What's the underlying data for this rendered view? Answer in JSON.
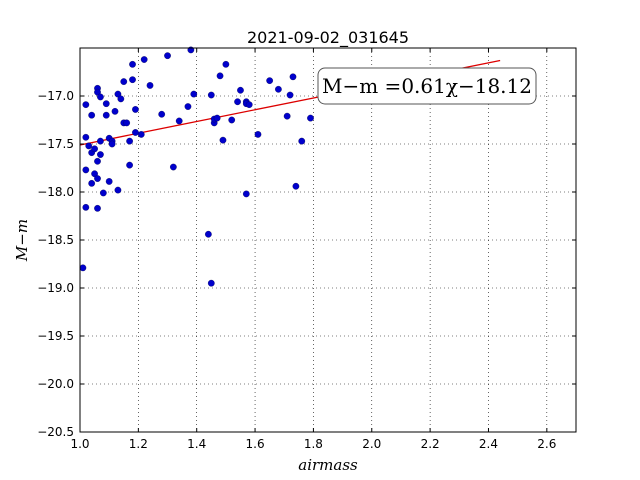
{
  "chart_data": {
    "type": "scatter",
    "title": "2021-09-02_031645",
    "xlabel": "airmass",
    "ylabel": "M−m",
    "xlim": [
      1.0,
      2.7
    ],
    "ylim": [
      -20.5,
      -16.5
    ],
    "y_inverted": true,
    "xticks": [
      "1.0",
      "1.2",
      "1.4",
      "1.6",
      "1.8",
      "2.0",
      "2.2",
      "2.4",
      "2.6"
    ],
    "yticks": [
      "−17.0",
      "−17.5",
      "−18.0",
      "−18.5",
      "−19.0",
      "−19.5",
      "−20.0",
      "−20.5"
    ],
    "grid": true,
    "annotation": "M−m =0.61χ−18.12",
    "colors": {
      "points": "#0000cc",
      "fit_line": "#dd0000"
    },
    "series": [
      {
        "kind": "points",
        "x": [
          1.01,
          1.02,
          1.02,
          1.02,
          1.02,
          1.03,
          1.04,
          1.04,
          1.04,
          1.05,
          1.05,
          1.06,
          1.06,
          1.06,
          1.06,
          1.06,
          1.07,
          1.07,
          1.07,
          1.08,
          1.09,
          1.09,
          1.1,
          1.1,
          1.11,
          1.11,
          1.12,
          1.13,
          1.13,
          1.14,
          1.15,
          1.15,
          1.16,
          1.17,
          1.17,
          1.18,
          1.18,
          1.19,
          1.19,
          1.21,
          1.22,
          1.24,
          1.28,
          1.3,
          1.32,
          1.34,
          1.37,
          1.38,
          1.39,
          1.44,
          1.45,
          1.45,
          1.46,
          1.46,
          1.47,
          1.48,
          1.49,
          1.5,
          1.52,
          1.54,
          1.55,
          1.57,
          1.57,
          1.57,
          1.58,
          1.61,
          1.65,
          1.68,
          1.71,
          1.72,
          1.73,
          1.74,
          1.76,
          1.79
        ],
        "y": [
          -18.79,
          -17.43,
          -17.09,
          -17.77,
          -18.16,
          -17.52,
          -17.2,
          -17.59,
          -17.91,
          -17.55,
          -17.81,
          -16.92,
          -16.96,
          -17.68,
          -17.86,
          -18.17,
          -17.01,
          -17.47,
          -17.61,
          -18.01,
          -17.08,
          -17.2,
          -17.44,
          -17.89,
          -17.47,
          -17.5,
          -17.16,
          -17.98,
          -16.98,
          -17.03,
          -16.85,
          -17.28,
          -17.28,
          -17.47,
          -17.72,
          -16.83,
          -16.67,
          -17.14,
          -17.38,
          -17.4,
          -16.62,
          -16.89,
          -17.19,
          -16.58,
          -17.74,
          -17.26,
          -17.11,
          -16.52,
          -16.98,
          -18.44,
          -16.99,
          -18.95,
          -17.28,
          -17.24,
          -17.23,
          -16.79,
          -17.46,
          -16.67,
          -17.25,
          -17.06,
          -16.94,
          -17.06,
          -17.08,
          -18.02,
          -17.09,
          -17.4,
          -16.84,
          -16.93,
          -17.21,
          -16.99,
          -16.8,
          -17.94,
          -17.47,
          -17.23
        ]
      },
      {
        "kind": "fit_line",
        "x": [
          1.0,
          2.44
        ],
        "y": [
          -17.51,
          -16.63
        ]
      }
    ]
  }
}
